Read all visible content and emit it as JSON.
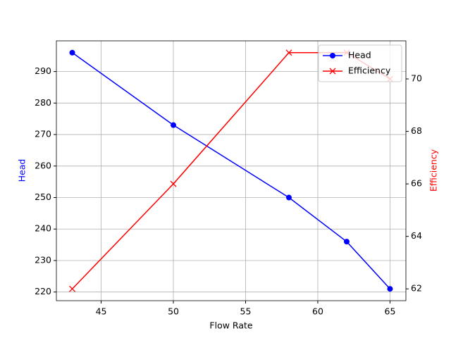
{
  "chart_data": {
    "type": "line",
    "x_label": "Flow Rate",
    "y_label": "Head",
    "y2_label": "Efficiency",
    "x": [
      43,
      50,
      58,
      62,
      65
    ],
    "series": [
      {
        "name": "Head",
        "color": "#0000ff",
        "marker": "o",
        "values": [
          296,
          273,
          250,
          236,
          221
        ]
      },
      {
        "name": "Efficiency",
        "color": "#ff0000",
        "marker": "x",
        "axis": "y2",
        "values": [
          62,
          66,
          71,
          71,
          70
        ]
      }
    ],
    "xlim": [
      41.9,
      66.1
    ],
    "xticks": [
      45,
      50,
      55,
      60,
      65
    ],
    "ylim": [
      217.25,
      299.75
    ],
    "yticks": [
      220,
      230,
      240,
      250,
      260,
      270,
      280,
      290
    ],
    "y2lim": [
      61.55,
      71.45
    ],
    "y2ticks": [
      62,
      64,
      66,
      68,
      70
    ],
    "grid": true,
    "legend": "upper right"
  }
}
